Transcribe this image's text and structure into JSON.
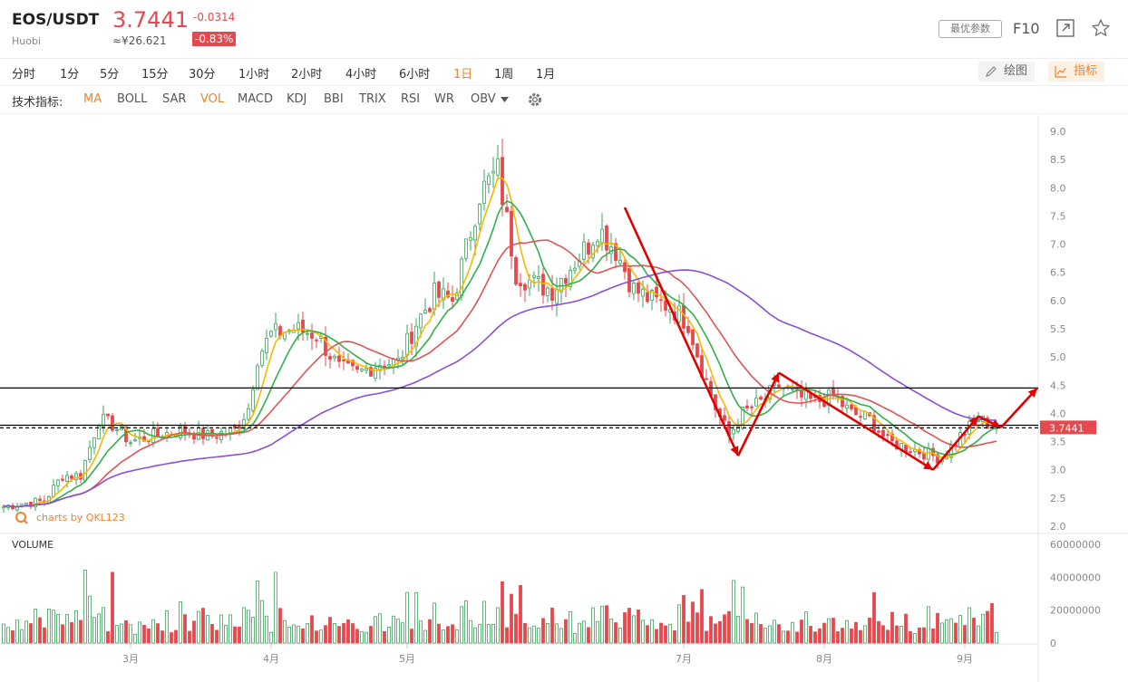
{
  "header": {
    "pair": "EOS/USDT",
    "exchange": "Huobi",
    "price": "3.7441",
    "cny_price": "≈¥26.621",
    "change": "-0.0314",
    "change_pct": "-0.83%",
    "best_params_label": "最优参数",
    "f10_label": "F10"
  },
  "periods": [
    {
      "label": "分时",
      "active": false
    },
    {
      "label": "1分",
      "active": false
    },
    {
      "label": "5分",
      "active": false
    },
    {
      "label": "15分",
      "active": false
    },
    {
      "label": "30分",
      "active": false
    },
    {
      "label": "1小时",
      "active": false
    },
    {
      "label": "2小时",
      "active": false
    },
    {
      "label": "4小时",
      "active": false
    },
    {
      "label": "6小时",
      "active": false
    },
    {
      "label": "1日",
      "active": true
    },
    {
      "label": "1周",
      "active": false
    },
    {
      "label": "1月",
      "active": false
    }
  ],
  "tools": {
    "draw_label": "绘图",
    "indicator_label": "指标"
  },
  "indicators": {
    "label": "技术指标:",
    "items": [
      {
        "label": "MA",
        "active": true
      },
      {
        "label": "BOLL",
        "active": false
      },
      {
        "label": "SAR",
        "active": false
      },
      {
        "label": "VOL",
        "active": true
      },
      {
        "label": "MACD",
        "active": false
      },
      {
        "label": "KDJ",
        "active": false
      },
      {
        "label": "BBI",
        "active": false
      },
      {
        "label": "TRIX",
        "active": false
      },
      {
        "label": "RSI",
        "active": false
      },
      {
        "label": "WR",
        "active": false
      },
      {
        "label": "OBV",
        "active": false,
        "dropdown": true
      }
    ]
  },
  "colors": {
    "up": "#3ba55d",
    "down": "#e5484d",
    "ma5": "#f5b800",
    "ma10": "#2fb14a",
    "ma20": "#e05454",
    "ma60": "#8a4fd3",
    "accent": "#f0822e",
    "arrow": "#e00000"
  },
  "chart_data": {
    "type": "candlestick",
    "watermark": "charts by QKL123",
    "price_axis": {
      "ticks": [
        2.0,
        2.5,
        3.0,
        3.5,
        4.0,
        4.5,
        5.0,
        5.5,
        6.0,
        6.5,
        7.0,
        7.5,
        8.0,
        8.5,
        9.0
      ],
      "range": [
        2.0,
        9.0
      ]
    },
    "current_price_label": "3.7441",
    "horizontal_lines": [
      {
        "value": 4.45,
        "style": "solid",
        "color": "#000000"
      },
      {
        "value": 3.79,
        "style": "solid",
        "color": "#000000"
      },
      {
        "value": 3.7441,
        "style": "dashed",
        "color": "#000000"
      }
    ],
    "x_axis": {
      "ticks": [
        {
          "label": "3月",
          "day": 31
        },
        {
          "label": "4月",
          "day": 62
        },
        {
          "label": "5月",
          "day": 92
        },
        {
          "label": "7月",
          "day": 153
        },
        {
          "label": "8月",
          "day": 184
        },
        {
          "label": "9月",
          "day": 215
        }
      ],
      "day_range": [
        3,
        222
      ]
    },
    "price_anchors": [
      {
        "day": 3,
        "close": 2.35
      },
      {
        "day": 7,
        "close": 2.4
      },
      {
        "day": 12,
        "close": 2.45
      },
      {
        "day": 16,
        "close": 2.9
      },
      {
        "day": 20,
        "close": 2.9
      },
      {
        "day": 24,
        "close": 3.9
      },
      {
        "day": 27,
        "close": 3.8
      },
      {
        "day": 31,
        "close": 3.5
      },
      {
        "day": 36,
        "close": 3.6
      },
      {
        "day": 42,
        "close": 3.7
      },
      {
        "day": 48,
        "close": 3.6
      },
      {
        "day": 54,
        "close": 3.7
      },
      {
        "day": 57,
        "close": 4.1
      },
      {
        "day": 59,
        "close": 5.0
      },
      {
        "day": 62,
        "close": 5.4
      },
      {
        "day": 67,
        "close": 5.5
      },
      {
        "day": 72,
        "close": 5.4
      },
      {
        "day": 77,
        "close": 4.8
      },
      {
        "day": 81,
        "close": 4.7
      },
      {
        "day": 86,
        "close": 4.9
      },
      {
        "day": 90,
        "close": 4.9
      },
      {
        "day": 94,
        "close": 5.6
      },
      {
        "day": 98,
        "close": 6.1
      },
      {
        "day": 102,
        "close": 6.0
      },
      {
        "day": 105,
        "close": 6.9
      },
      {
        "day": 108,
        "close": 7.9
      },
      {
        "day": 112,
        "close": 8.3
      },
      {
        "day": 116,
        "close": 6.5
      },
      {
        "day": 120,
        "close": 6.3
      },
      {
        "day": 124,
        "close": 6.2
      },
      {
        "day": 128,
        "close": 6.6
      },
      {
        "day": 132,
        "close": 7.0
      },
      {
        "day": 134,
        "close": 7.3
      },
      {
        "day": 138,
        "close": 6.9
      },
      {
        "day": 142,
        "close": 6.2
      },
      {
        "day": 146,
        "close": 6.0
      },
      {
        "day": 150,
        "close": 5.9
      },
      {
        "day": 154,
        "close": 5.6
      },
      {
        "day": 157,
        "close": 4.8
      },
      {
        "day": 160,
        "close": 4.1
      },
      {
        "day": 163,
        "close": 3.6
      },
      {
        "day": 166,
        "close": 4.0
      },
      {
        "day": 170,
        "close": 4.2
      },
      {
        "day": 174,
        "close": 4.5
      },
      {
        "day": 178,
        "close": 4.3
      },
      {
        "day": 182,
        "close": 4.2
      },
      {
        "day": 186,
        "close": 4.3
      },
      {
        "day": 190,
        "close": 4.0
      },
      {
        "day": 194,
        "close": 3.9
      },
      {
        "day": 198,
        "close": 3.5
      },
      {
        "day": 202,
        "close": 3.4
      },
      {
        "day": 206,
        "close": 3.3
      },
      {
        "day": 210,
        "close": 3.2
      },
      {
        "day": 214,
        "close": 3.6
      },
      {
        "day": 218,
        "close": 3.9
      },
      {
        "day": 222,
        "close": 3.74
      }
    ],
    "moving_averages": [
      {
        "name": "MA5",
        "period": 5
      },
      {
        "name": "MA10",
        "period": 10
      },
      {
        "name": "MA20",
        "period": 20
      },
      {
        "name": "MA60",
        "period": 60
      }
    ],
    "annotation_arrows": [
      {
        "from": {
          "day": 140,
          "price": 7.65
        },
        "to": {
          "day": 165,
          "price": 3.25
        }
      },
      {
        "from": {
          "day": 165,
          "price": 3.25
        },
        "to": {
          "day": 174,
          "price": 4.72
        }
      },
      {
        "from": {
          "day": 174,
          "price": 4.72
        },
        "to": {
          "day": 208,
          "price": 3.0
        }
      },
      {
        "from": {
          "day": 208,
          "price": 3.0
        },
        "to": {
          "day": 218,
          "price": 3.95
        }
      },
      {
        "from": {
          "day": 218,
          "price": 3.95
        },
        "to": {
          "day": 223,
          "price": 3.75
        }
      },
      {
        "from": {
          "day": 223,
          "price": 3.75
        },
        "to": {
          "day": 231,
          "price": 4.45
        }
      }
    ],
    "volume": {
      "label": "VOLUME",
      "axis_ticks": [
        0,
        20000000,
        40000000,
        60000000
      ],
      "axis_labels": [
        "0",
        "20000000",
        "40000000",
        "60000000"
      ],
      "range": [
        0,
        60000000
      ],
      "notable_bars": [
        {
          "day": 27,
          "value": 43000000
        },
        {
          "day": 63,
          "value": 43000000
        },
        {
          "day": 117,
          "value": 35000000
        },
        {
          "day": 164,
          "value": 38000000
        },
        {
          "day": 221,
          "value": 24000000
        }
      ]
    }
  }
}
